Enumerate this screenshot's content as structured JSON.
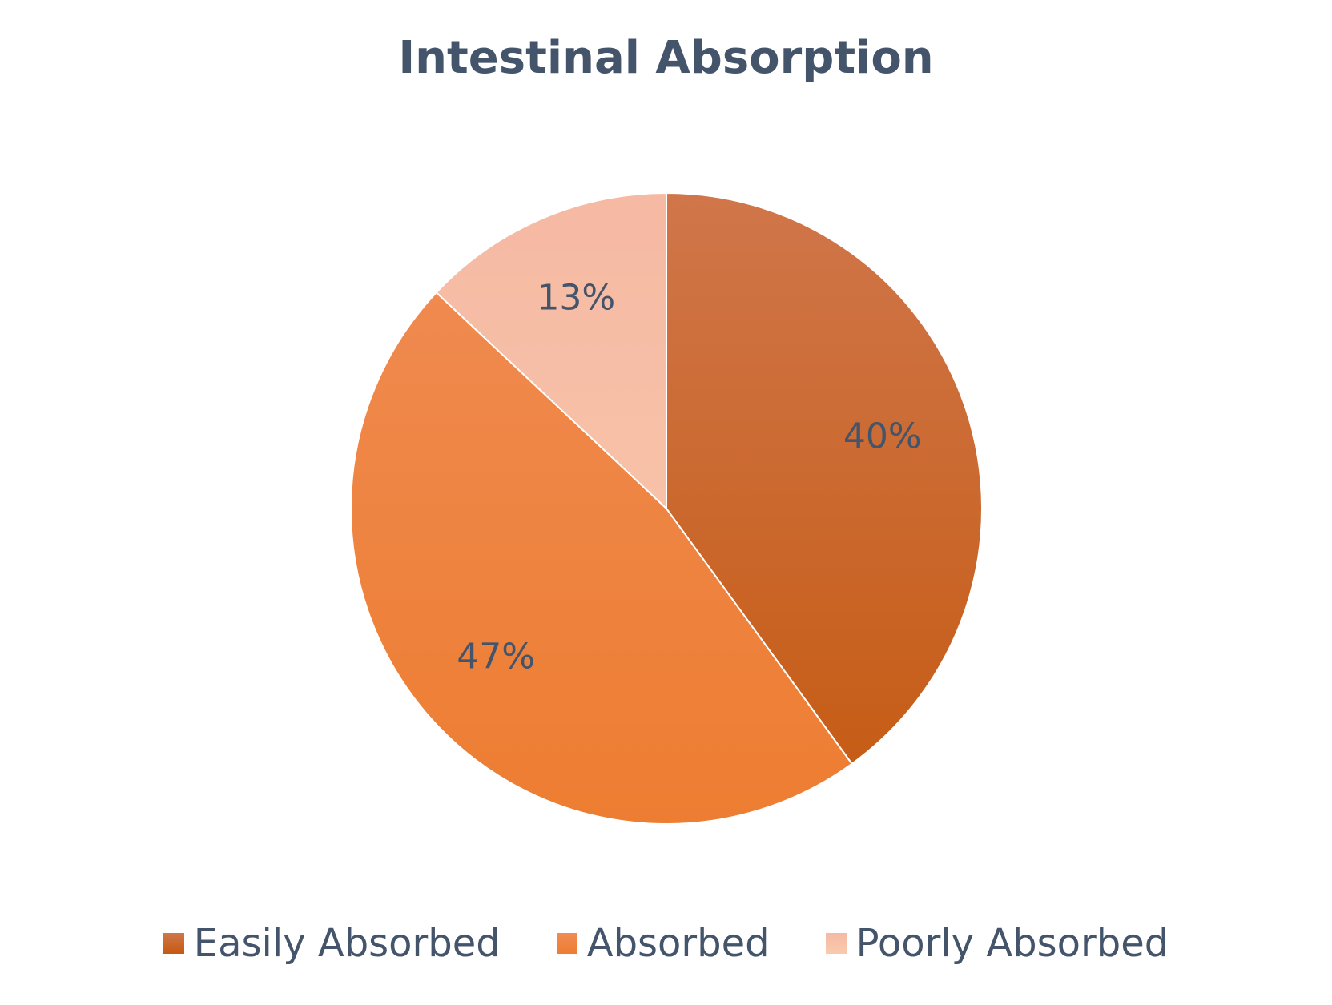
{
  "chart_data": {
    "type": "pie",
    "title": "Intestinal Absorption",
    "legend_position": "bottom",
    "slices": [
      {
        "name": "Easily Absorbed",
        "value": 40,
        "label": "40%",
        "color": "#c55a11",
        "color_light": "#d0764a"
      },
      {
        "name": "Absorbed",
        "value": 47,
        "label": "47%",
        "color": "#ed7d31",
        "color_light": "#f08c54"
      },
      {
        "name": "Poorly Absorbed",
        "value": 13,
        "label": "13%",
        "color": "#f8cbad",
        "color_light": "#f6b9a3"
      }
    ],
    "start_angle_deg": 0,
    "direction": "clockwise"
  }
}
